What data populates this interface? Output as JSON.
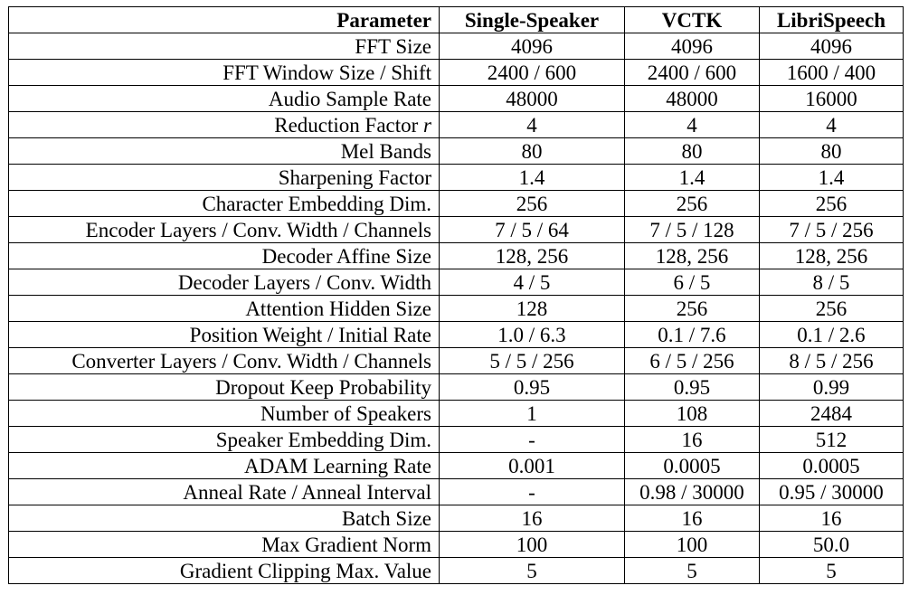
{
  "table": {
    "headers": [
      "Parameter",
      "Single-Speaker",
      "VCTK",
      "LibriSpeech"
    ],
    "rows": [
      {
        "param": "FFT Size",
        "values": [
          "4096",
          "4096",
          "4096"
        ]
      },
      {
        "param": "FFT Window Size / Shift",
        "values": [
          "2400 / 600",
          "2400 / 600",
          "1600 / 400"
        ]
      },
      {
        "param": "Audio Sample Rate",
        "values": [
          "48000",
          "48000",
          "16000"
        ]
      },
      {
        "param": "Reduction Factor",
        "param_var": "r",
        "values": [
          "4",
          "4",
          "4"
        ]
      },
      {
        "param": "Mel Bands",
        "values": [
          "80",
          "80",
          "80"
        ]
      },
      {
        "param": "Sharpening Factor",
        "values": [
          "1.4",
          "1.4",
          "1.4"
        ]
      },
      {
        "param": "Character Embedding Dim.",
        "values": [
          "256",
          "256",
          "256"
        ]
      },
      {
        "param": "Encoder Layers / Conv. Width / Channels",
        "values": [
          "7 / 5 / 64",
          "7 / 5 / 128",
          "7 / 5 / 256"
        ]
      },
      {
        "param": "Decoder Affine Size",
        "values": [
          "128, 256",
          "128, 256",
          "128, 256"
        ]
      },
      {
        "param": "Decoder Layers / Conv. Width",
        "values": [
          "4 / 5",
          "6 / 5",
          "8 / 5"
        ]
      },
      {
        "param": "Attention Hidden Size",
        "values": [
          "128",
          "256",
          "256"
        ]
      },
      {
        "param": "Position Weight / Initial Rate",
        "values": [
          "1.0 / 6.3",
          "0.1 / 7.6",
          "0.1 / 2.6"
        ]
      },
      {
        "param": "Converter Layers / Conv. Width / Channels",
        "values": [
          "5 / 5 / 256",
          "6 / 5 / 256",
          "8 / 5 / 256"
        ]
      },
      {
        "param": "Dropout Keep Probability",
        "values": [
          "0.95",
          "0.95",
          "0.99"
        ]
      },
      {
        "param": "Number of Speakers",
        "values": [
          "1",
          "108",
          "2484"
        ]
      },
      {
        "param": "Speaker Embedding Dim.",
        "values": [
          "-",
          "16",
          "512"
        ]
      },
      {
        "param": "ADAM Learning Rate",
        "values": [
          "0.001",
          "0.0005",
          "0.0005"
        ]
      },
      {
        "param": "Anneal Rate / Anneal Interval",
        "values": [
          "-",
          "0.98 / 30000",
          "0.95 / 30000"
        ]
      },
      {
        "param": "Batch Size",
        "values": [
          "16",
          "16",
          "16"
        ]
      },
      {
        "param": "Max Gradient Norm",
        "values": [
          "100",
          "100",
          "50.0"
        ]
      },
      {
        "param": "Gradient Clipping Max. Value",
        "values": [
          "5",
          "5",
          "5"
        ]
      }
    ]
  }
}
